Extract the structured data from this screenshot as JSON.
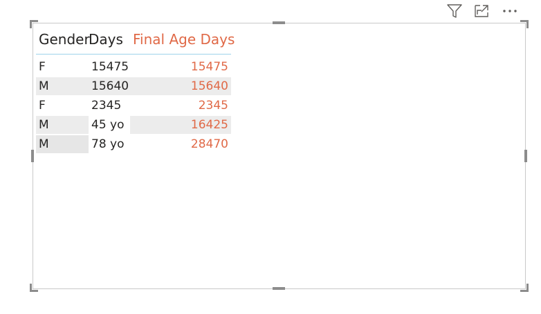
{
  "table": {
    "headers": {
      "gender": "Gender",
      "days": "Days",
      "final_age_days": "Final Age Days"
    },
    "rows": [
      {
        "gender": "F",
        "days": "15475",
        "final_age_days": "15475"
      },
      {
        "gender": "M",
        "days": "15640",
        "final_age_days": "15640"
      },
      {
        "gender": "F",
        "days": "2345",
        "final_age_days": "2345"
      },
      {
        "gender": "M",
        "days": "45 yo",
        "final_age_days": "16425"
      },
      {
        "gender": "M",
        "days": "78 yo",
        "final_age_days": "28470"
      }
    ]
  },
  "toolbar": {
    "icons": [
      "filter-icon",
      "focus-mode-icon",
      "more-options-icon"
    ]
  },
  "colors": {
    "accent": "#e06947",
    "header_rule": "#9ed3ea",
    "text": "#252423",
    "stripe": "#ececec",
    "frame": "#c8c8c8",
    "handle": "#8c8c8c"
  }
}
